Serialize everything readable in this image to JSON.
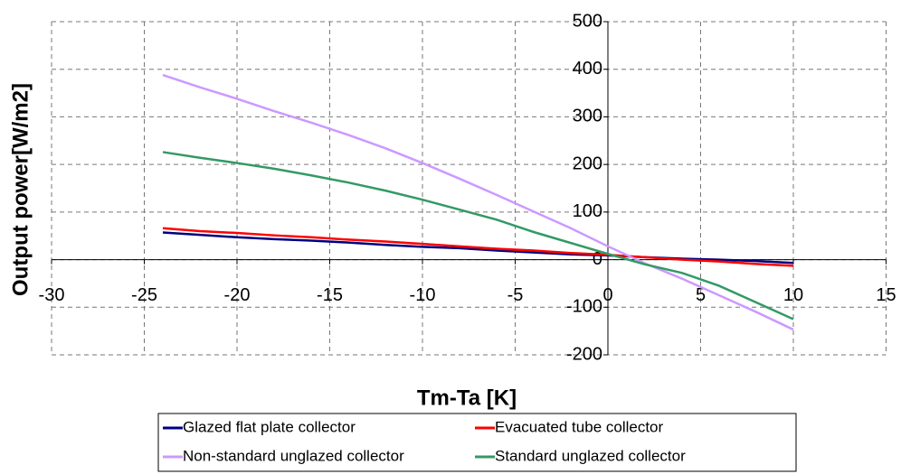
{
  "chart_data": {
    "type": "line",
    "x_label": "Tm-Ta [K]",
    "y_label": "Output power[W/m2]",
    "x": [
      -24,
      -22,
      -20,
      -18,
      -16,
      -14,
      -12,
      -10,
      -8,
      -6,
      -4,
      -2,
      0,
      2,
      4,
      6,
      8,
      10
    ],
    "series": [
      {
        "name": "Glazed flat plate collector",
        "color": "#000080",
        "values": [
          57,
          52,
          47,
          43,
          40,
          36,
          31,
          27,
          24,
          19,
          15,
          11,
          9,
          5,
          2,
          0,
          -3,
          -7
        ]
      },
      {
        "name": "Evacuated tube collector",
        "color": "#ff0000",
        "values": [
          66,
          60,
          56,
          51,
          47,
          42,
          38,
          33,
          28,
          23,
          19,
          14,
          10,
          5,
          0,
          -4,
          -9,
          -13
        ]
      },
      {
        "name": "Non-standard unglazed collector",
        "color": "#cc99ff",
        "values": [
          388,
          362,
          338,
          312,
          288,
          262,
          234,
          203,
          170,
          136,
          101,
          66,
          28,
          -8,
          -40,
          -75,
          -110,
          -147
        ]
      },
      {
        "name": "Standard unglazed collector",
        "color": "#339966",
        "values": [
          226,
          214,
          203,
          191,
          177,
          162,
          145,
          126,
          105,
          84,
          58,
          35,
          12,
          -10,
          -28,
          -55,
          -90,
          -125
        ]
      }
    ],
    "xlim": [
      -30,
      15
    ],
    "xticks": [
      -30,
      -25,
      -20,
      -15,
      -10,
      -5,
      0,
      5,
      10,
      15
    ],
    "ylim": [
      -200,
      500
    ],
    "yticks": [
      -200,
      -100,
      0,
      100,
      200,
      300,
      400,
      500
    ],
    "grid": true,
    "legend": "bottom"
  }
}
